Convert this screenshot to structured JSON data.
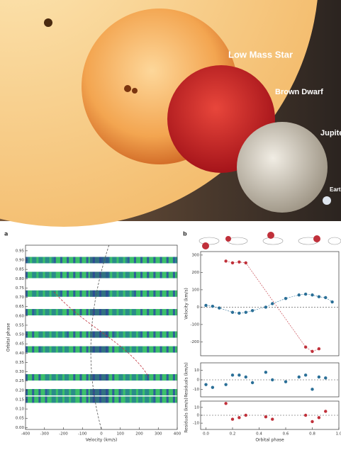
{
  "illustration": {
    "labels": [
      "Low Mass Star",
      "Brown Dwarf",
      "Jupite",
      "Eart"
    ]
  },
  "chart_data": [
    {
      "type": "spectra",
      "panel_label": "a",
      "x_label": "Velocity (km/s)",
      "y_label": "Orbital phase",
      "xlim": [
        -400,
        400
      ],
      "xticks": [
        -400,
        -300,
        -200,
        -100,
        0,
        100,
        200,
        300,
        400
      ],
      "ylim": [
        -0.01,
        0.98
      ],
      "yticks": [
        {
          "value": 0,
          "label": "0.00"
        },
        {
          "value": 0.05,
          "label": "0.05"
        },
        {
          "value": 0.1,
          "label": "0.10"
        },
        {
          "value": 0.15,
          "label": "0.15"
        },
        {
          "value": 0.2,
          "label": "0.20"
        },
        {
          "value": 0.25,
          "label": "0.25"
        },
        {
          "value": 0.3,
          "label": "0.30"
        },
        {
          "value": 0.35,
          "label": "0.35"
        },
        {
          "value": 0.4,
          "label": "0.40"
        },
        {
          "value": 0.45,
          "label": "0.45"
        },
        {
          "value": 0.5,
          "label": "0.50"
        },
        {
          "value": 0.55,
          "label": "0.55"
        },
        {
          "value": 0.6,
          "label": "0.60"
        },
        {
          "value": 0.65,
          "label": "0.65"
        },
        {
          "value": 0.7,
          "label": "0.70"
        },
        {
          "value": 0.75,
          "label": "0.75"
        },
        {
          "value": 0.8,
          "label": "0.80"
        },
        {
          "value": 0.85,
          "label": "0.85"
        },
        {
          "value": 0.9,
          "label": "0.90"
        },
        {
          "value": 0.95,
          "label": "0.95"
        }
      ],
      "phases": [
        0.15,
        0.19,
        0.27,
        0.42,
        0.5,
        0.62,
        0.72,
        0.82,
        0.9
      ]
    },
    {
      "type": "scatter",
      "panel_label": "b",
      "y_label": "Velocity (km/s)",
      "xlim": [
        -0.04,
        1.0
      ],
      "ylim": [
        -280,
        320
      ],
      "yticks": [
        -200,
        -100,
        0,
        100,
        200,
        300
      ],
      "series": [
        {
          "color": "#2a6f97",
          "x": [
            0,
            0.05,
            0.1,
            0.2,
            0.25,
            0.3,
            0.35,
            0.45,
            0.5,
            0.6,
            0.7,
            0.75,
            0.8,
            0.85,
            0.9,
            0.95
          ],
          "values": [
            10,
            5,
            -5,
            -30,
            -35,
            -30,
            -20,
            0,
            20,
            50,
            70,
            75,
            70,
            60,
            55,
            30
          ]
        },
        {
          "color": "#c0303a",
          "x": [
            0.15,
            0.2,
            0.25,
            0.3,
            0.75,
            0.8,
            0.85
          ],
          "values": [
            265,
            255,
            260,
            255,
            -230,
            -255,
            -240
          ]
        }
      ]
    },
    {
      "type": "scatter",
      "y_label": "Residuals (km/s)",
      "xlim": [
        -0.04,
        1.0
      ],
      "ylim": [
        -18,
        18
      ],
      "yticks": [
        -10,
        0,
        10
      ],
      "series": [
        {
          "color": "#2a6f97",
          "x": [
            0,
            0.05,
            0.15,
            0.2,
            0.25,
            0.3,
            0.35,
            0.45,
            0.5,
            0.6,
            0.7,
            0.75,
            0.8,
            0.85,
            0.9
          ],
          "values": [
            -5,
            -8,
            -5,
            5,
            5,
            3,
            -3,
            8,
            0,
            -2,
            3,
            5,
            -10,
            3,
            2
          ]
        }
      ]
    },
    {
      "type": "scatter",
      "y_label": "Residuals (km/s)",
      "x_label": "Orbital phase",
      "xlim": [
        -0.04,
        1.0
      ],
      "ylim": [
        -18,
        18
      ],
      "yticks": [
        -10,
        0,
        10
      ],
      "xticks": [
        {
          "value": 0,
          "label": "0.0"
        },
        {
          "value": 0.2,
          "label": "0.2"
        },
        {
          "value": 0.4,
          "label": "0.4"
        },
        {
          "value": 0.6,
          "label": "0.6"
        },
        {
          "value": 0.8,
          "label": "0.8"
        },
        {
          "value": 1,
          "label": "1.0"
        }
      ],
      "series": [
        {
          "color": "#c0303a",
          "x": [
            0.15,
            0.2,
            0.25,
            0.3,
            0.45,
            0.5,
            0.75,
            0.8,
            0.85,
            0.9
          ],
          "values": [
            15,
            -5,
            -3,
            0,
            -2,
            -5,
            0,
            -8,
            -3,
            5
          ]
        }
      ]
    }
  ]
}
